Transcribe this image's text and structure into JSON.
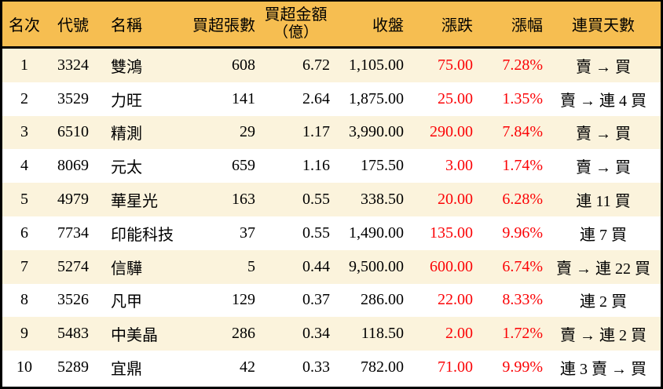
{
  "table": {
    "columns": [
      {
        "label": "名次"
      },
      {
        "label": "代號"
      },
      {
        "label": "名稱"
      },
      {
        "label": "買超張數"
      },
      {
        "label": "買超金額",
        "label2": "（億）"
      },
      {
        "label": "收盤"
      },
      {
        "label": "漲跌"
      },
      {
        "label": "漲幅"
      },
      {
        "label": "連買天數"
      }
    ],
    "rows": [
      {
        "rank": "1",
        "code": "3324",
        "name": "雙鴻",
        "volume": "608",
        "amount": "6.72",
        "close": "1,105.00",
        "change": "75.00",
        "change_pct": "7.28%",
        "streak": "賣 → 買"
      },
      {
        "rank": "2",
        "code": "3529",
        "name": "力旺",
        "volume": "141",
        "amount": "2.64",
        "close": "1,875.00",
        "change": "25.00",
        "change_pct": "1.35%",
        "streak": "賣 → 連 4 買"
      },
      {
        "rank": "3",
        "code": "6510",
        "name": "精測",
        "volume": "29",
        "amount": "1.17",
        "close": "3,990.00",
        "change": "290.00",
        "change_pct": "7.84%",
        "streak": "賣 → 買"
      },
      {
        "rank": "4",
        "code": "8069",
        "name": "元太",
        "volume": "659",
        "amount": "1.16",
        "close": "175.50",
        "change": "3.00",
        "change_pct": "1.74%",
        "streak": "賣 → 買"
      },
      {
        "rank": "5",
        "code": "4979",
        "name": "華星光",
        "volume": "163",
        "amount": "0.55",
        "close": "338.50",
        "change": "20.00",
        "change_pct": "6.28%",
        "streak": "連 11 買"
      },
      {
        "rank": "6",
        "code": "7734",
        "name": "印能科技",
        "volume": "37",
        "amount": "0.55",
        "close": "1,490.00",
        "change": "135.00",
        "change_pct": "9.96%",
        "streak": "連 7 買"
      },
      {
        "rank": "7",
        "code": "5274",
        "name": "信驊",
        "volume": "5",
        "amount": "0.44",
        "close": "9,500.00",
        "change": "600.00",
        "change_pct": "6.74%",
        "streak": "賣 → 連 22 買"
      },
      {
        "rank": "8",
        "code": "3526",
        "name": "凡甲",
        "volume": "129",
        "amount": "0.37",
        "close": "286.00",
        "change": "22.00",
        "change_pct": "8.33%",
        "streak": "連 2 買"
      },
      {
        "rank": "9",
        "code": "5483",
        "name": "中美晶",
        "volume": "286",
        "amount": "0.34",
        "close": "118.50",
        "change": "2.00",
        "change_pct": "1.72%",
        "streak": "賣 → 連 2 買"
      },
      {
        "rank": "10",
        "code": "5289",
        "name": "宜鼎",
        "volume": "42",
        "amount": "0.33",
        "close": "782.00",
        "change": "71.00",
        "change_pct": "9.99%",
        "streak": "連 3 賣 → 買"
      }
    ]
  },
  "colors": {
    "header_bg": "#F6BE51",
    "row_odd_bg": "#FBF3DC",
    "row_even_bg": "#FFFFFF",
    "up_text": "#FB0306",
    "text": "#000000",
    "border": "#000000"
  }
}
